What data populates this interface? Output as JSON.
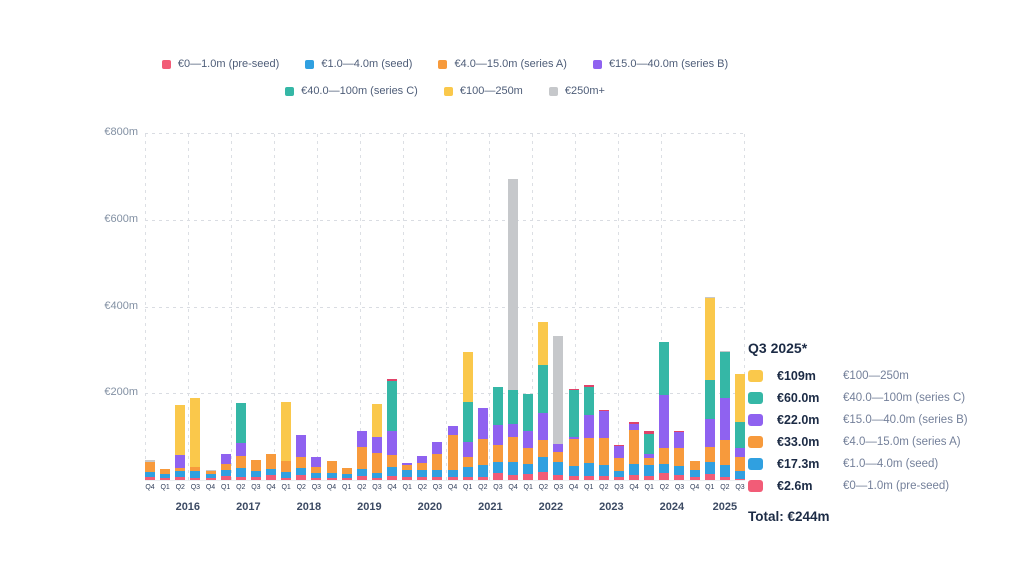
{
  "chart_data": {
    "type": "bar",
    "stacked": true,
    "unit": "EUR millions",
    "ylim": [
      0,
      800
    ],
    "grid": "dashed",
    "yticks": [
      {
        "m": 800,
        "label": "€800m"
      },
      {
        "m": 600,
        "label": "€600m"
      },
      {
        "m": 400,
        "label": "€400m"
      },
      {
        "m": 200,
        "label": "€200m"
      }
    ],
    "series_keys": [
      "pre_seed",
      "seed",
      "series_a",
      "series_b",
      "series_c",
      "m100_250",
      "m250_plus"
    ],
    "series_labels": {
      "pre_seed": "€0—1.0m (pre-seed)",
      "seed": "€1.0—4.0m (seed)",
      "series_a": "€4.0—15.0m (series A)",
      "series_b": "€15.0—40.0m (series B)",
      "series_c": "€40.0—100m (series C)",
      "m100_250": "€100—250m",
      "m250_plus": "€250m+"
    },
    "colors": {
      "pre_seed": "#F25C77",
      "seed": "#30A0E0",
      "series_a": "#F79A3C",
      "series_b": "#8F62F0",
      "series_c": "#35B7A6",
      "m100_250": "#FAC84B",
      "m250_plus": "#C6C8CB",
      "cap_red": "#E0436A",
      "cap_gray": "#C6C8CB"
    },
    "legend_row_split": 4,
    "year_labels": [
      "2016",
      "2017",
      "2018",
      "2019",
      "2020",
      "2021",
      "2022",
      "2023",
      "2024",
      "2025"
    ],
    "bars": [
      {
        "y": "2015",
        "q": "Q4",
        "v": [
          6,
          12,
          24,
          0,
          0,
          0,
          0
        ],
        "cap": {
          "c": "gray",
          "v": 4
        }
      },
      {
        "y": "2016",
        "q": "Q1",
        "v": [
          4,
          10,
          11,
          0,
          0,
          0,
          0
        ]
      },
      {
        "y": "2016",
        "q": "Q2",
        "v": [
          6,
          14,
          8,
          30,
          0,
          115,
          0
        ]
      },
      {
        "y": "2016",
        "q": "Q3",
        "v": [
          5,
          16,
          10,
          0,
          0,
          158,
          0
        ]
      },
      {
        "y": "2016",
        "q": "Q4",
        "v": [
          4,
          9,
          8,
          0,
          0,
          0,
          0
        ],
        "cap": {
          "c": "gray",
          "v": 3
        }
      },
      {
        "y": "2017",
        "q": "Q1",
        "v": [
          9,
          14,
          14,
          23,
          0,
          0,
          0
        ]
      },
      {
        "y": "2017",
        "q": "Q2",
        "v": [
          7,
          21,
          28,
          30,
          91,
          0,
          0
        ]
      },
      {
        "y": "2017",
        "q": "Q3",
        "v": [
          6,
          14,
          27,
          0,
          0,
          0,
          0
        ]
      },
      {
        "y": "2017",
        "q": "Q4",
        "v": [
          12,
          14,
          34,
          0,
          0,
          0,
          0
        ]
      },
      {
        "y": "2018",
        "q": "Q1",
        "v": [
          5,
          14,
          25,
          0,
          0,
          136,
          0
        ]
      },
      {
        "y": "2018",
        "q": "Q2",
        "v": [
          12,
          16,
          25,
          51,
          0,
          0,
          0
        ]
      },
      {
        "y": "2018",
        "q": "Q3",
        "v": [
          5,
          11,
          14,
          23,
          0,
          0,
          0
        ]
      },
      {
        "y": "2018",
        "q": "Q4",
        "v": [
          5,
          12,
          27,
          0,
          0,
          0,
          0
        ]
      },
      {
        "y": "2019",
        "q": "Q1",
        "v": [
          4,
          9,
          15,
          0,
          0,
          0,
          0
        ]
      },
      {
        "y": "2019",
        "q": "Q2",
        "v": [
          10,
          16,
          50,
          37,
          0,
          0,
          0
        ]
      },
      {
        "y": "2019",
        "q": "Q3",
        "v": [
          5,
          12,
          45,
          38,
          0,
          75,
          0
        ]
      },
      {
        "y": "2019",
        "q": "Q4",
        "v": [
          10,
          20,
          28,
          55,
          115,
          0,
          0
        ],
        "cap": {
          "c": "red",
          "v": 4
        }
      },
      {
        "y": "2020",
        "q": "Q1",
        "v": [
          6,
          18,
          10,
          5,
          0,
          0,
          0
        ]
      },
      {
        "y": "2020",
        "q": "Q2",
        "v": [
          6,
          16,
          18,
          15,
          0,
          0,
          0
        ]
      },
      {
        "y": "2020",
        "q": "Q3",
        "v": [
          7,
          16,
          37,
          27,
          0,
          0,
          0
        ]
      },
      {
        "y": "2020",
        "q": "Q4",
        "v": [
          8,
          15,
          80,
          22,
          0,
          0,
          0
        ]
      },
      {
        "y": "2021",
        "q": "Q1",
        "v": [
          7,
          23,
          23,
          35,
          92,
          115,
          0
        ]
      },
      {
        "y": "2021",
        "q": "Q2",
        "v": [
          8,
          26,
          60,
          72,
          0,
          0,
          0
        ]
      },
      {
        "y": "2021",
        "q": "Q3",
        "v": [
          16,
          25,
          39,
          46,
          88,
          0,
          0
        ]
      },
      {
        "y": "2021",
        "q": "Q4",
        "v": [
          12,
          30,
          58,
          30,
          77,
          0,
          488
        ]
      },
      {
        "y": "2022",
        "q": "Q1",
        "v": [
          14,
          23,
          37,
          39,
          85,
          0,
          0
        ]
      },
      {
        "y": "2022",
        "q": "Q2",
        "v": [
          18,
          35,
          40,
          62,
          110,
          100,
          0
        ]
      },
      {
        "y": "2022",
        "q": "Q3",
        "v": [
          12,
          30,
          22,
          18,
          0,
          0,
          250
        ]
      },
      {
        "y": "2022",
        "q": "Q4",
        "v": [
          10,
          23,
          62,
          5,
          108,
          0,
          0
        ],
        "cap": {
          "c": "red",
          "v": 3
        }
      },
      {
        "y": "2023",
        "q": "Q1",
        "v": [
          9,
          30,
          58,
          53,
          65,
          0,
          0
        ],
        "cap": {
          "c": "red",
          "v": 3
        }
      },
      {
        "y": "2023",
        "q": "Q2",
        "v": [
          10,
          25,
          62,
          62,
          0,
          0,
          0
        ],
        "cap": {
          "c": "red",
          "v": 3
        }
      },
      {
        "y": "2023",
        "q": "Q3",
        "v": [
          6,
          14,
          30,
          28,
          0,
          0,
          0
        ],
        "cap": {
          "c": "red",
          "v": 3
        }
      },
      {
        "y": "2023",
        "q": "Q4",
        "v": [
          12,
          25,
          78,
          14,
          0,
          0,
          0
        ],
        "cap": {
          "c": "red",
          "v": 5
        }
      },
      {
        "y": "2024",
        "q": "Q1",
        "v": [
          10,
          25,
          15,
          11,
          46,
          0,
          0
        ],
        "cap": {
          "c": "red",
          "v": 5
        }
      },
      {
        "y": "2024",
        "q": "Q2",
        "v": [
          16,
          21,
          37,
          122,
          122,
          0,
          0
        ]
      },
      {
        "y": "2024",
        "q": "Q3",
        "v": [
          11,
          21,
          41,
          37,
          0,
          0,
          0
        ],
        "cap": {
          "c": "red",
          "v": 3
        }
      },
      {
        "y": "2024",
        "q": "Q4",
        "v": [
          7,
          16,
          21,
          0,
          0,
          0,
          0
        ]
      },
      {
        "y": "2025",
        "q": "Q1",
        "v": [
          13,
          28,
          35,
          64,
          90,
          189,
          0
        ],
        "cap": {
          "c": "gray",
          "v": 3
        }
      },
      {
        "y": "2025",
        "q": "Q2",
        "v": [
          7,
          28,
          58,
          95,
          107,
          0,
          0
        ],
        "cap": {
          "c": "gray",
          "v": 3
        }
      },
      {
        "y": "2025",
        "q": "Q3",
        "v": [
          2.6,
          17.3,
          33,
          22,
          60,
          109,
          0
        ]
      }
    ]
  },
  "panel": {
    "title": "Q3 2025*",
    "rows": [
      {
        "value": "€109m",
        "label": "€100—250m",
        "key": "m100_250"
      },
      {
        "value": "€60.0m",
        "label": "€40.0—100m (series C)",
        "key": "series_c"
      },
      {
        "value": "€22.0m",
        "label": "€15.0—40.0m (series B)",
        "key": "series_b"
      },
      {
        "value": "€33.0m",
        "label": "€4.0—15.0m (series A)",
        "key": "series_a"
      },
      {
        "value": "€17.3m",
        "label": "€1.0—4.0m (seed)",
        "key": "seed"
      },
      {
        "value": "€2.6m",
        "label": "€0—1.0m (pre-seed)",
        "key": "pre_seed"
      }
    ],
    "total": "Total: €244m"
  }
}
